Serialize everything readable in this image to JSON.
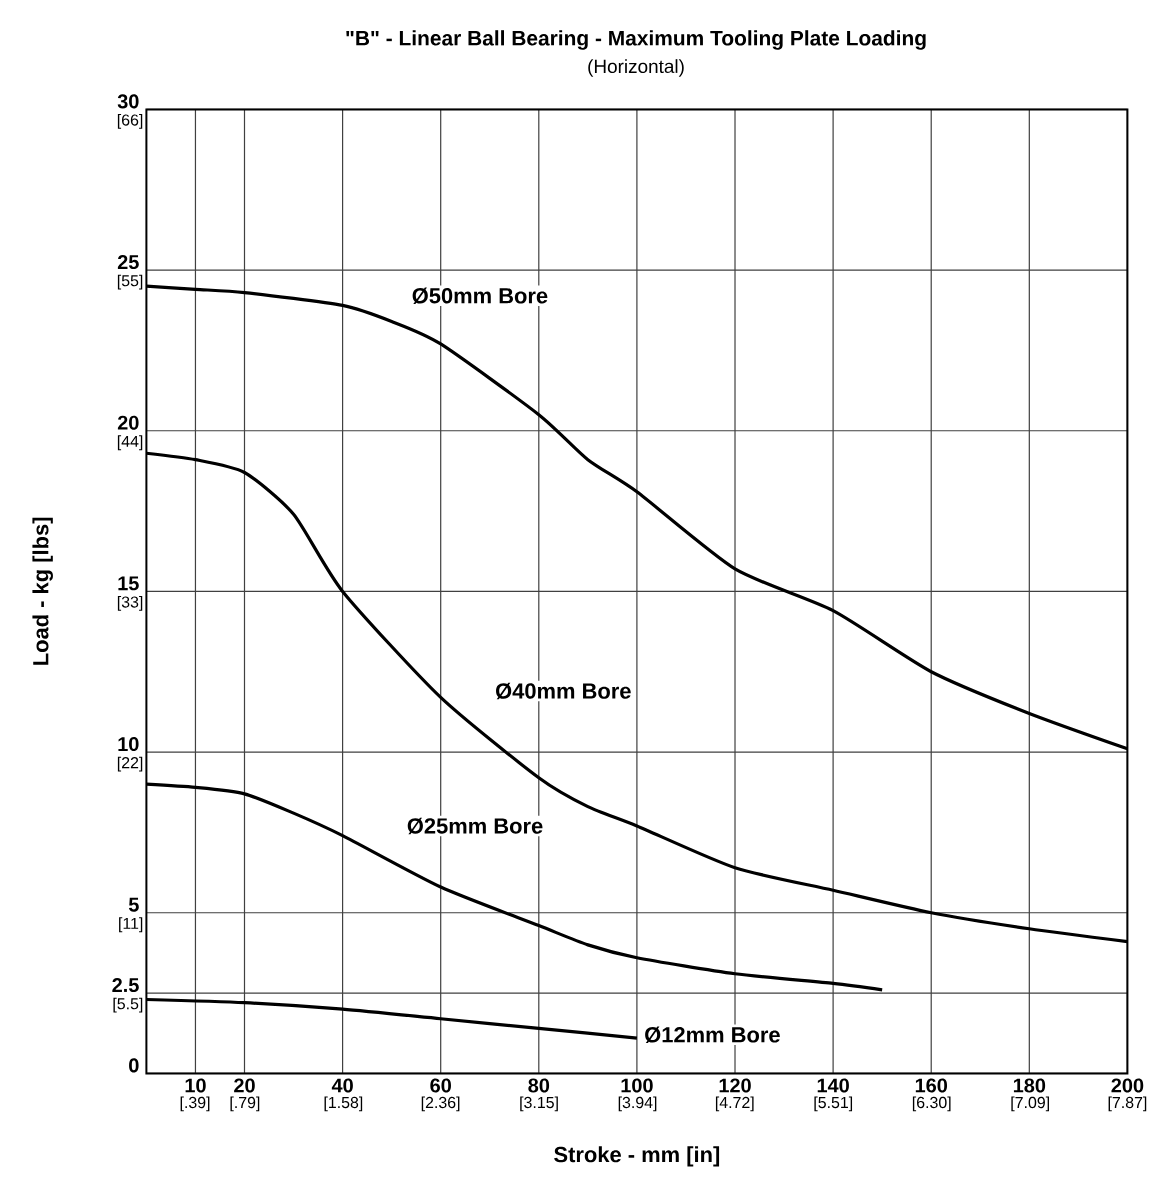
{
  "chart_data": {
    "type": "line",
    "title": "\"B\" - Linear Ball Bearing - Maximum Tooling Plate Loading",
    "subtitle": "(Horizontal)",
    "xlabel": "Stroke - mm [in]",
    "ylabel": "Load - kg [lbs]",
    "xlim": [
      0,
      200
    ],
    "ylim": [
      0,
      30
    ],
    "grid": true,
    "xticks": [
      10,
      20,
      40,
      60,
      80,
      100,
      120,
      140,
      160,
      180,
      200
    ],
    "x2lim": [
      0,
      7.87
    ],
    "x2ticks": [
      {
        "value": 0.39,
        "label": "[.39]"
      },
      {
        "value": 0.79,
        "label": "[.79]"
      },
      {
        "value": 1.58,
        "label": "[1.58]"
      },
      {
        "value": 2.36,
        "label": "[2.36]"
      },
      {
        "value": 3.15,
        "label": "[3.15]"
      },
      {
        "value": 3.94,
        "label": "[3.94]"
      },
      {
        "value": 4.72,
        "label": "[4.72]"
      },
      {
        "value": 5.51,
        "label": "[5.51]"
      },
      {
        "value": 6.3,
        "label": "[6.30]"
      },
      {
        "value": 7.09,
        "label": "[7.09]"
      },
      {
        "value": 7.87,
        "label": "[7.87]"
      }
    ],
    "yticks": [
      0,
      2.5,
      5,
      10,
      15,
      20,
      25,
      30
    ],
    "y2lim": [
      0,
      66
    ],
    "y2ticks": [
      {
        "value": 5.5,
        "label": "[5.5]"
      },
      {
        "value": 11,
        "label": "[11]"
      },
      {
        "value": 22,
        "label": "[22]"
      },
      {
        "value": 33,
        "label": "[33]"
      },
      {
        "value": 44,
        "label": "[44]"
      },
      {
        "value": 55,
        "label": "[55]"
      },
      {
        "value": 66,
        "label": "[66]"
      }
    ],
    "series": [
      {
        "name": "Ø50mm Bore",
        "color": "#000000",
        "x": [
          0,
          10,
          20,
          40,
          50,
          60,
          80,
          90,
          100,
          120,
          140,
          160,
          180,
          200
        ],
        "values": [
          24.5,
          24.4,
          24.3,
          23.9,
          23.4,
          22.7,
          20.5,
          19.1,
          18.1,
          15.7,
          14.4,
          12.5,
          11.2,
          10.1
        ]
      },
      {
        "name": "Ø40mm Bore",
        "color": "#000000",
        "x": [
          0,
          10,
          20,
          30,
          40,
          60,
          80,
          90,
          100,
          120,
          140,
          160,
          180,
          200
        ],
        "values": [
          19.3,
          19.1,
          18.7,
          17.4,
          15.0,
          11.7,
          9.2,
          8.3,
          7.7,
          6.4,
          5.7,
          5.0,
          4.5,
          4.1
        ]
      },
      {
        "name": "Ø25mm Bore",
        "color": "#000000",
        "x": [
          0,
          10,
          20,
          30,
          40,
          60,
          80,
          90,
          100,
          120,
          140,
          150
        ],
        "values": [
          9.0,
          8.9,
          8.7,
          8.1,
          7.4,
          5.8,
          4.6,
          4.0,
          3.6,
          3.1,
          2.8,
          2.6
        ]
      },
      {
        "name": "Ø12mm Bore",
        "color": "#000000",
        "x": [
          0,
          20,
          40,
          60,
          80,
          100
        ],
        "values": [
          2.3,
          2.2,
          2.0,
          1.7,
          1.4,
          1.1
        ]
      }
    ]
  }
}
